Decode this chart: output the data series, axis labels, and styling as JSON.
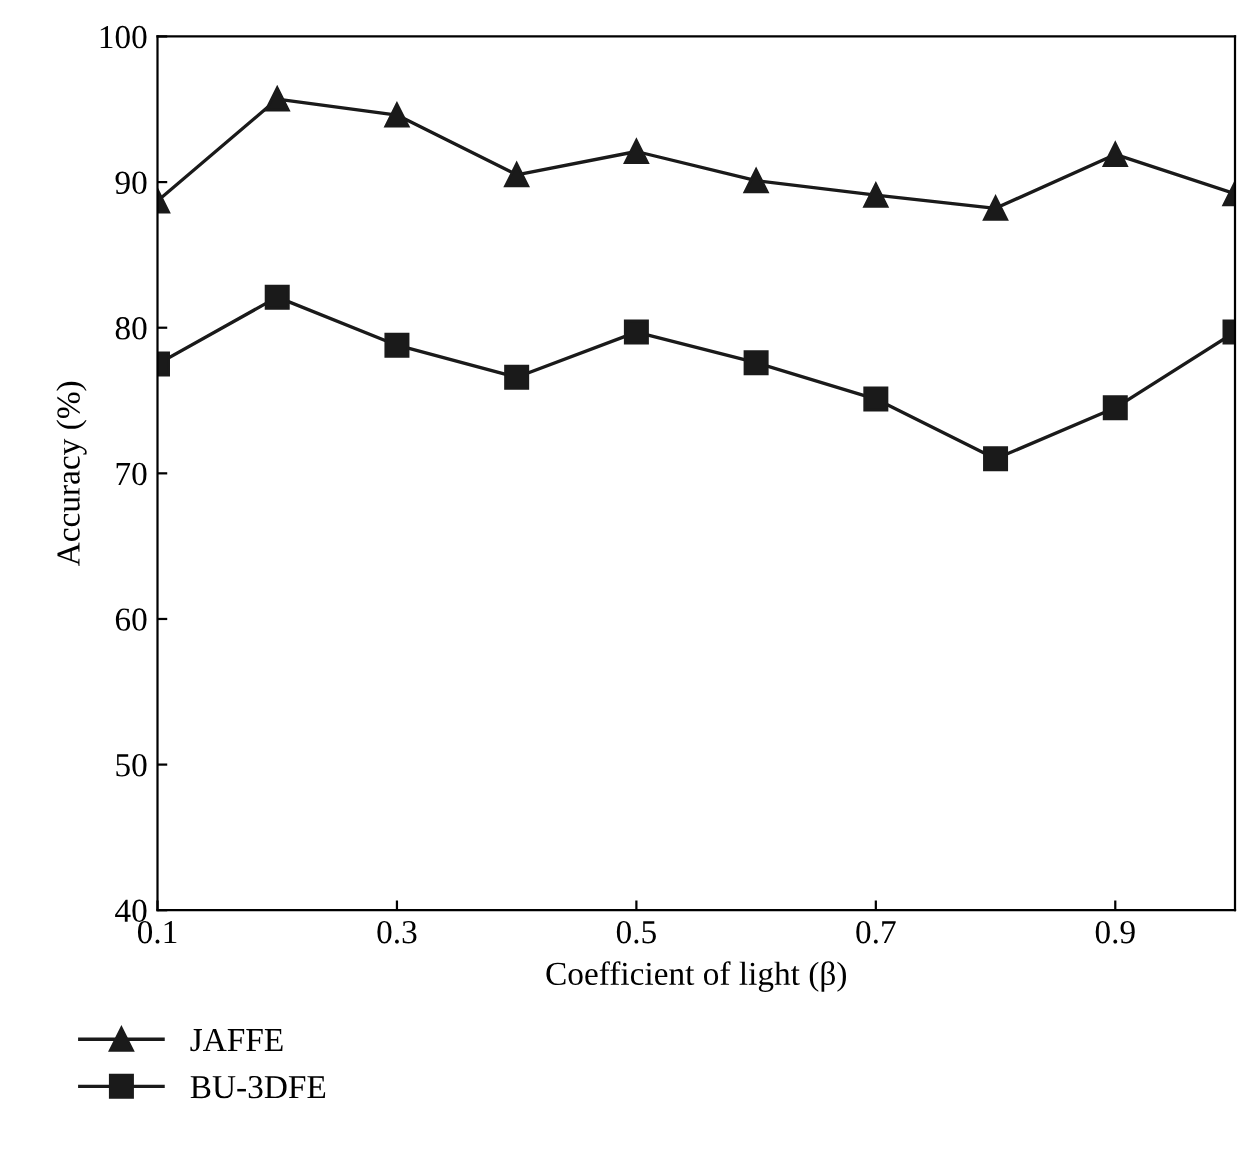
{
  "chart_data": {
    "type": "line",
    "xlabel": "Coefficient of light (β)",
    "ylabel": "Accuracy (%)",
    "x": [
      0.1,
      0.2,
      0.3,
      0.4,
      0.5,
      0.6,
      0.7,
      0.8,
      0.9,
      1.0
    ],
    "series": [
      {
        "name": "JAFFE",
        "color": "#1a1a1a",
        "marker": "triangle",
        "values": [
          88.7,
          95.7,
          94.6,
          90.5,
          92.1,
          90.1,
          89.1,
          88.2,
          91.9,
          89.2
        ]
      },
      {
        "name": "BU-3DFE",
        "color": "#1a1a1a",
        "marker": "square",
        "values": [
          77.5,
          82.1,
          78.8,
          76.6,
          79.7,
          77.6,
          75.1,
          71.0,
          74.5,
          79.7
        ]
      }
    ],
    "xlim": [
      0.1,
      1.0
    ],
    "xticks": [
      0.1,
      0.3,
      0.5,
      0.7,
      0.9
    ],
    "ylim": [
      40,
      100
    ],
    "yticks": [
      40,
      50,
      60,
      70,
      80,
      90,
      100
    ],
    "grid": false,
    "legend": "bottom left",
    "line_style": "solid"
  }
}
